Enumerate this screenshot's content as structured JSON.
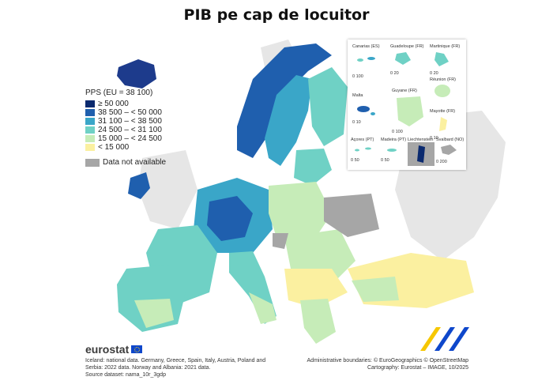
{
  "title": "PIB pe cap de locuitor",
  "legend": {
    "title": "PPS (EU = 38 100)",
    "classes": [
      {
        "label": "≥ 50 000",
        "color": "#0b2a6f"
      },
      {
        "label": "38 500 – < 50 000",
        "color": "#1f5fae"
      },
      {
        "label": "31 100 – < 38 500",
        "color": "#3aa6c8"
      },
      {
        "label": "24 500 – < 31 100",
        "color": "#6fd1c5"
      },
      {
        "label": "15 000 – < 24 500",
        "color": "#c6ecb8"
      },
      {
        "label": "< 15 000",
        "color": "#fbf0a0"
      }
    ],
    "not_available": {
      "label": "Data not available",
      "color": "#a6a6a6"
    }
  },
  "insets": {
    "canarias": "Canarias (ES)",
    "guadeloupe": "Guadeloupe (FR)",
    "martinique": "Martinique (FR)",
    "reunion": "Réunion (FR)",
    "malta": "Malta",
    "guyane": "Guyane (FR)",
    "mayotte": "Mayotte (FR)",
    "acores": "Açores (PT)",
    "madeira": "Madeira (PT)",
    "liechtenstein": "Liechtenstein",
    "svalbard": "Svalbard (NO)",
    "scale_100": "0  100",
    "scale_20": "0  20",
    "scale_10": "0  10",
    "scale_50": "0  50",
    "scale_200": "0  200"
  },
  "brand": "eurostat",
  "footer": {
    "left_lines": [
      "Iceland: national data. Germany, Greece, Spain, Italy, Austria, Poland and",
      "Serbia: 2022 data. Norway and Albania: 2021 data.",
      "Source dataset: nama_10r_3gdp"
    ],
    "right_lines": [
      "Administrative boundaries: © EuroGeographics © OpenStreetMap",
      "Cartography: Eurostat – IMAGE, 10/2025"
    ]
  }
}
